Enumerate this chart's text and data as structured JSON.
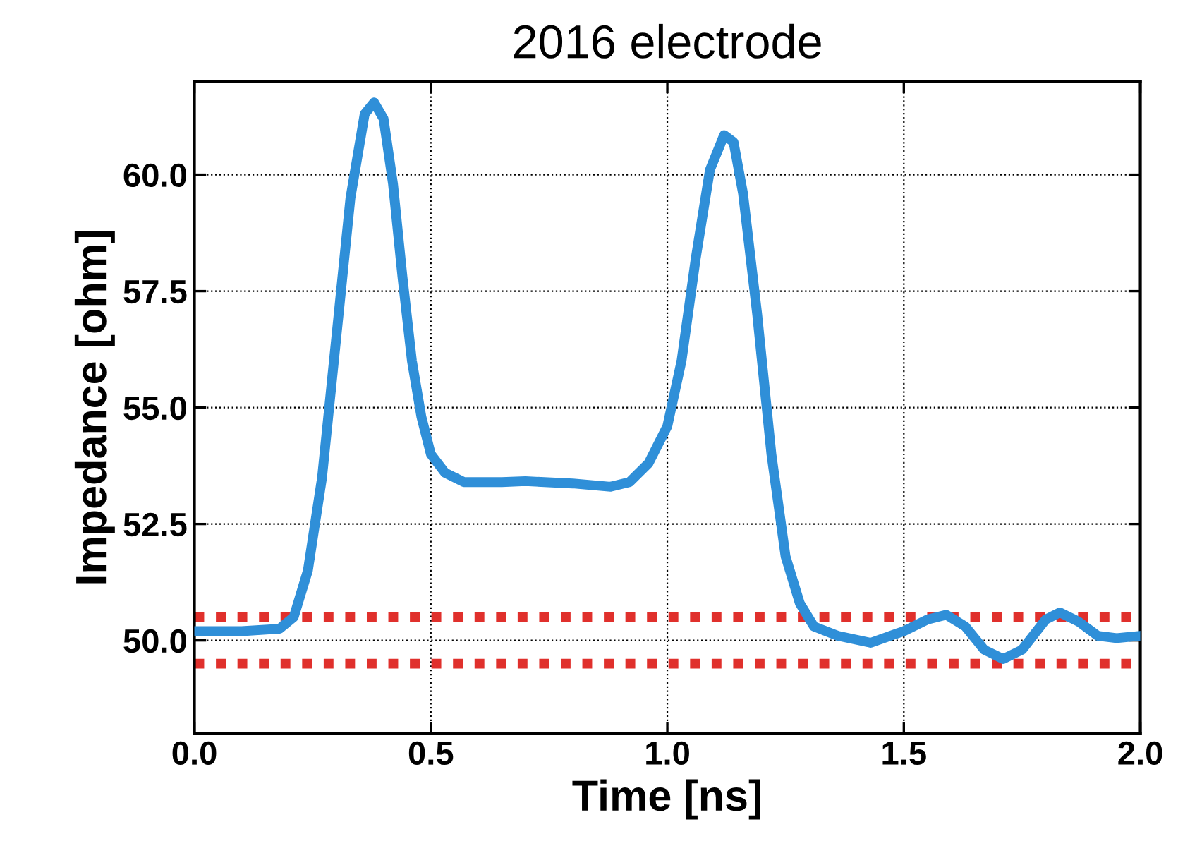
{
  "chart_data": {
    "type": "line",
    "title": "2016 electrode",
    "xlabel": "Time [ns]",
    "ylabel": "Impedance [ohm]",
    "xlim": [
      0.0,
      2.0
    ],
    "xticks": [
      {
        "value": 0,
        "label": "0.0"
      },
      0.5,
      {
        "value": 1,
        "label": "1.0"
      },
      1.5,
      {
        "value": 2,
        "label": "2.0"
      }
    ],
    "ylim": [
      48.0,
      62.0
    ],
    "yticks": [
      {
        "value": 50,
        "label": "50.0"
      },
      52.5,
      {
        "value": 55,
        "label": "55.0"
      },
      57.5,
      {
        "value": 60,
        "label": "60.0"
      }
    ],
    "grid": true,
    "line_style": "solid",
    "series": [
      {
        "color": "#2f8fd8",
        "x": [
          0,
          0.1,
          0.18,
          0.21,
          0.24,
          0.27,
          0.3,
          0.33,
          0.36,
          0.38,
          0.4,
          0.42,
          0.44,
          0.46,
          0.48,
          0.5,
          0.53,
          0.57,
          0.65,
          0.7,
          0.8,
          0.88,
          0.92,
          0.96,
          1.0,
          1.03,
          1.06,
          1.09,
          1.12,
          1.14,
          1.16,
          1.19,
          1.22,
          1.25,
          1.28,
          1.31,
          1.36,
          1.43,
          1.5,
          1.55,
          1.59,
          1.63,
          1.67,
          1.71,
          1.75,
          1.8,
          1.83,
          1.87,
          1.91,
          1.95,
          2.0
        ],
        "values": [
          50.2,
          50.2,
          50.25,
          50.5,
          51.5,
          53.5,
          56.5,
          59.5,
          61.3,
          61.55,
          61.2,
          59.8,
          57.8,
          56.0,
          54.8,
          54.0,
          53.6,
          53.4,
          53.4,
          53.42,
          53.37,
          53.3,
          53.4,
          53.8,
          54.6,
          56.0,
          58.2,
          60.1,
          60.85,
          60.7,
          59.6,
          57.0,
          54.0,
          51.8,
          50.8,
          50.3,
          50.1,
          49.95,
          50.2,
          50.45,
          50.55,
          50.3,
          49.8,
          49.6,
          49.8,
          50.45,
          50.6,
          50.4,
          50.1,
          50.05,
          50.1
        ]
      }
    ],
    "ref_lines": [
      {
        "axis": "y",
        "value": 50.5,
        "color": "#e0302c",
        "line_style": "dotted"
      },
      {
        "axis": "y",
        "value": 49.5,
        "color": "#e0302c",
        "line_style": "dotted"
      }
    ]
  }
}
